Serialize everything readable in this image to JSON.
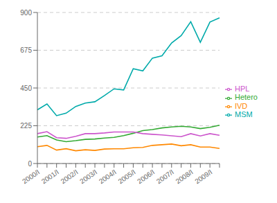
{
  "chart_data": {
    "type": "line",
    "categories": [
      "2000/I",
      null,
      "2001/I",
      null,
      "2002/I",
      null,
      "2003/I",
      null,
      "2004/I",
      null,
      "2005/I",
      null,
      "2006/I",
      null,
      "2007/I",
      null,
      "2008/I",
      null,
      "2009/I",
      null
    ],
    "series": [
      {
        "name": "MSM",
        "color": "#00AAAA",
        "values": [
          320,
          355,
          285,
          300,
          340,
          360,
          368,
          405,
          445,
          438,
          565,
          552,
          628,
          642,
          718,
          762,
          845,
          722,
          843,
          868
        ]
      },
      {
        "name": "IVD",
        "color": "#FF8800",
        "values": [
          100,
          108,
          80,
          88,
          76,
          82,
          78,
          86,
          88,
          88,
          94,
          96,
          108,
          112,
          116,
          106,
          112,
          98,
          98,
          90
        ]
      },
      {
        "name": "Hetero",
        "color": "#33AA33",
        "values": [
          158,
          166,
          140,
          130,
          136,
          144,
          146,
          152,
          156,
          166,
          180,
          196,
          202,
          212,
          218,
          222,
          218,
          208,
          216,
          228
        ]
      },
      {
        "name": "HPL",
        "color": "#CC55CC",
        "values": [
          178,
          190,
          154,
          150,
          162,
          178,
          178,
          182,
          188,
          188,
          188,
          178,
          174,
          170,
          165,
          160,
          178,
          164,
          178,
          168
        ]
      }
    ],
    "ylim": [
      0,
      900
    ],
    "yticks": [
      0,
      225,
      450,
      675,
      900
    ],
    "grid": true,
    "legend": "right"
  }
}
